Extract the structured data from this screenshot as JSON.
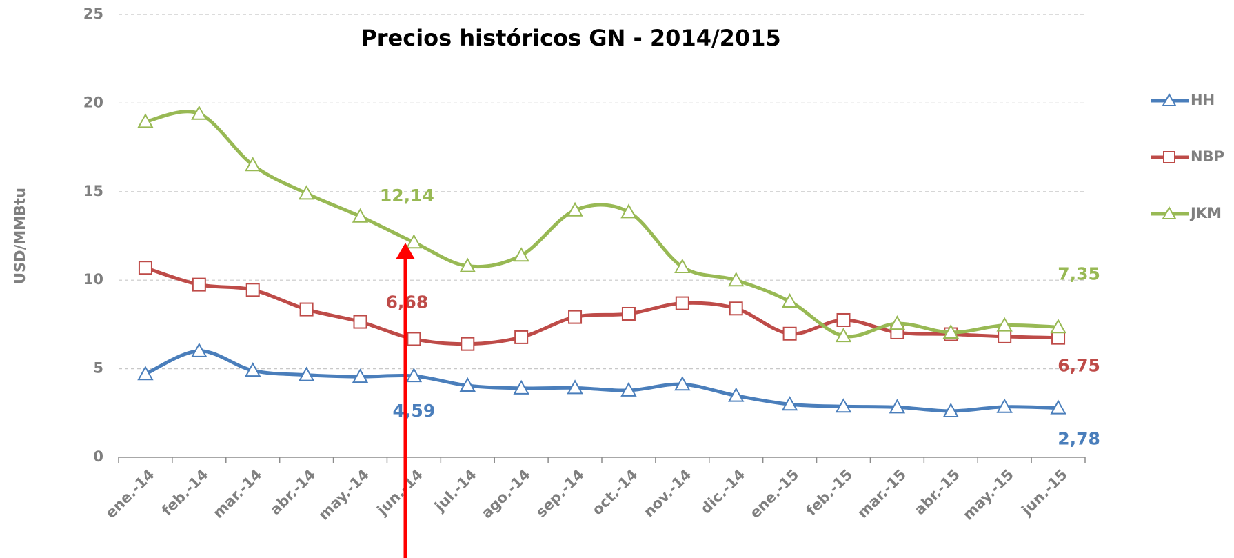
{
  "chart_data": {
    "type": "line",
    "title": "Precios históricos GN - 2014/2015",
    "y_label": "USD/MMBtu",
    "categories": [
      "ene.-14",
      "feb.-14",
      "mar.-14",
      "abr.-14",
      "may.-14",
      "jun.-14",
      "jul.-14",
      "ago.-14",
      "sep.-14",
      "oct.-14",
      "nov.-14",
      "dic.-14",
      "ene.-15",
      "feb.-15",
      "mar.-15",
      "abr.-15",
      "may.-15",
      "jun.-15"
    ],
    "series": [
      {
        "name": "HH",
        "color": "#4a7ebb",
        "marker": "triangle",
        "values": [
          4.7,
          6.0,
          4.9,
          4.65,
          4.55,
          4.59,
          4.05,
          3.9,
          3.92,
          3.78,
          4.12,
          3.48,
          2.99,
          2.87,
          2.83,
          2.61,
          2.85,
          2.78
        ],
        "value_labels": [
          null,
          null,
          null,
          null,
          null,
          "4,59",
          null,
          null,
          null,
          null,
          null,
          null,
          null,
          null,
          null,
          null,
          null,
          "2,78"
        ]
      },
      {
        "name": "NBP",
        "color": "#be4b48",
        "marker": "square",
        "values": [
          10.7,
          9.75,
          9.45,
          8.35,
          7.65,
          6.68,
          6.4,
          6.78,
          7.92,
          8.1,
          8.7,
          8.4,
          6.98,
          7.75,
          7.05,
          6.95,
          6.82,
          6.75
        ],
        "value_labels": [
          null,
          null,
          null,
          null,
          null,
          "6,68",
          null,
          null,
          null,
          null,
          null,
          null,
          null,
          null,
          null,
          null,
          null,
          "6,75"
        ]
      },
      {
        "name": "JKM",
        "color": "#98b954",
        "marker": "triangle",
        "values": [
          18.95,
          19.4,
          16.5,
          14.9,
          13.6,
          12.14,
          10.8,
          11.4,
          13.95,
          13.85,
          10.75,
          10.0,
          8.8,
          6.85,
          7.55,
          7.05,
          7.45,
          7.35
        ],
        "value_labels": [
          null,
          null,
          null,
          null,
          null,
          "12,14",
          null,
          null,
          null,
          null,
          null,
          null,
          null,
          null,
          null,
          null,
          null,
          "7,35"
        ]
      }
    ],
    "ylim": [
      0,
      25
    ],
    "yticks": [
      0,
      5,
      10,
      15,
      20,
      25
    ],
    "grid": true,
    "legend": "right",
    "smooth": true
  }
}
